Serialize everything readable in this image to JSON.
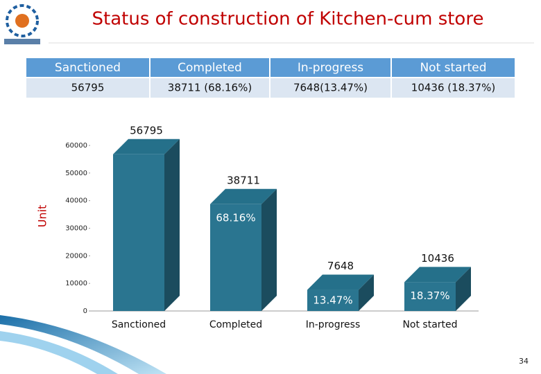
{
  "title": "Status of construction of Kitchen-cum store",
  "table": {
    "header": [
      "Sanctioned",
      "Completed",
      "In-progress",
      "Not started"
    ],
    "rows": [
      [
        "56795",
        "38711 (68.16%)",
        "7648(13.47%)",
        "10436 (18.37%)"
      ]
    ]
  },
  "chart_data": {
    "type": "bar",
    "categories": [
      "Sanctioned",
      "Completed",
      "In-progress",
      "Not started"
    ],
    "values": [
      56795,
      38711,
      7648,
      10436
    ],
    "percent_labels": [
      null,
      "68.16%",
      "13.47%",
      "18.37%"
    ],
    "y_label": "Unit",
    "color": "#2a7590",
    "ylim": [
      0,
      60000
    ],
    "yticks": [
      0,
      10000,
      20000,
      30000,
      40000,
      50000,
      60000
    ],
    "grid": false
  },
  "slide_number": "34"
}
